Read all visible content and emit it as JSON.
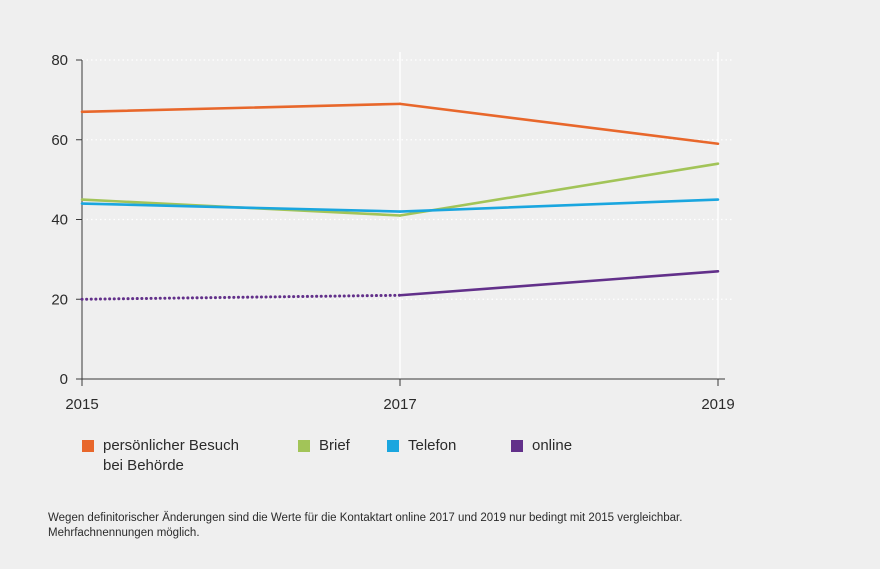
{
  "chart_data": {
    "type": "line",
    "x": [
      2015,
      2017,
      2019
    ],
    "xticks": [
      "2015",
      "2017",
      "2019"
    ],
    "ylim": [
      0,
      80
    ],
    "yticks": [
      "0",
      "20",
      "40",
      "60",
      "80"
    ],
    "grid": true,
    "legend_position": "bottom",
    "series": [
      {
        "name": "persönlicher Besuch\nbei Behörde",
        "values": [
          67,
          69,
          59
        ],
        "color": "#e8672b",
        "dotted_segments": []
      },
      {
        "name": "Brief",
        "values": [
          45,
          41,
          54
        ],
        "color": "#a2c458",
        "dotted_segments": []
      },
      {
        "name": "Telefon",
        "values": [
          44,
          42,
          45
        ],
        "color": "#1aa6df",
        "dotted_segments": []
      },
      {
        "name": "online",
        "values": [
          20,
          21,
          27
        ],
        "color": "#62308a",
        "dotted_segments": [
          0
        ]
      }
    ],
    "note": "Wegen definitorischer Änderungen sind die Werte für die Kontaktart online 2017 und 2019 nur bedingt mit 2015 vergleichbar.\nMehrfachnennungen möglich."
  }
}
